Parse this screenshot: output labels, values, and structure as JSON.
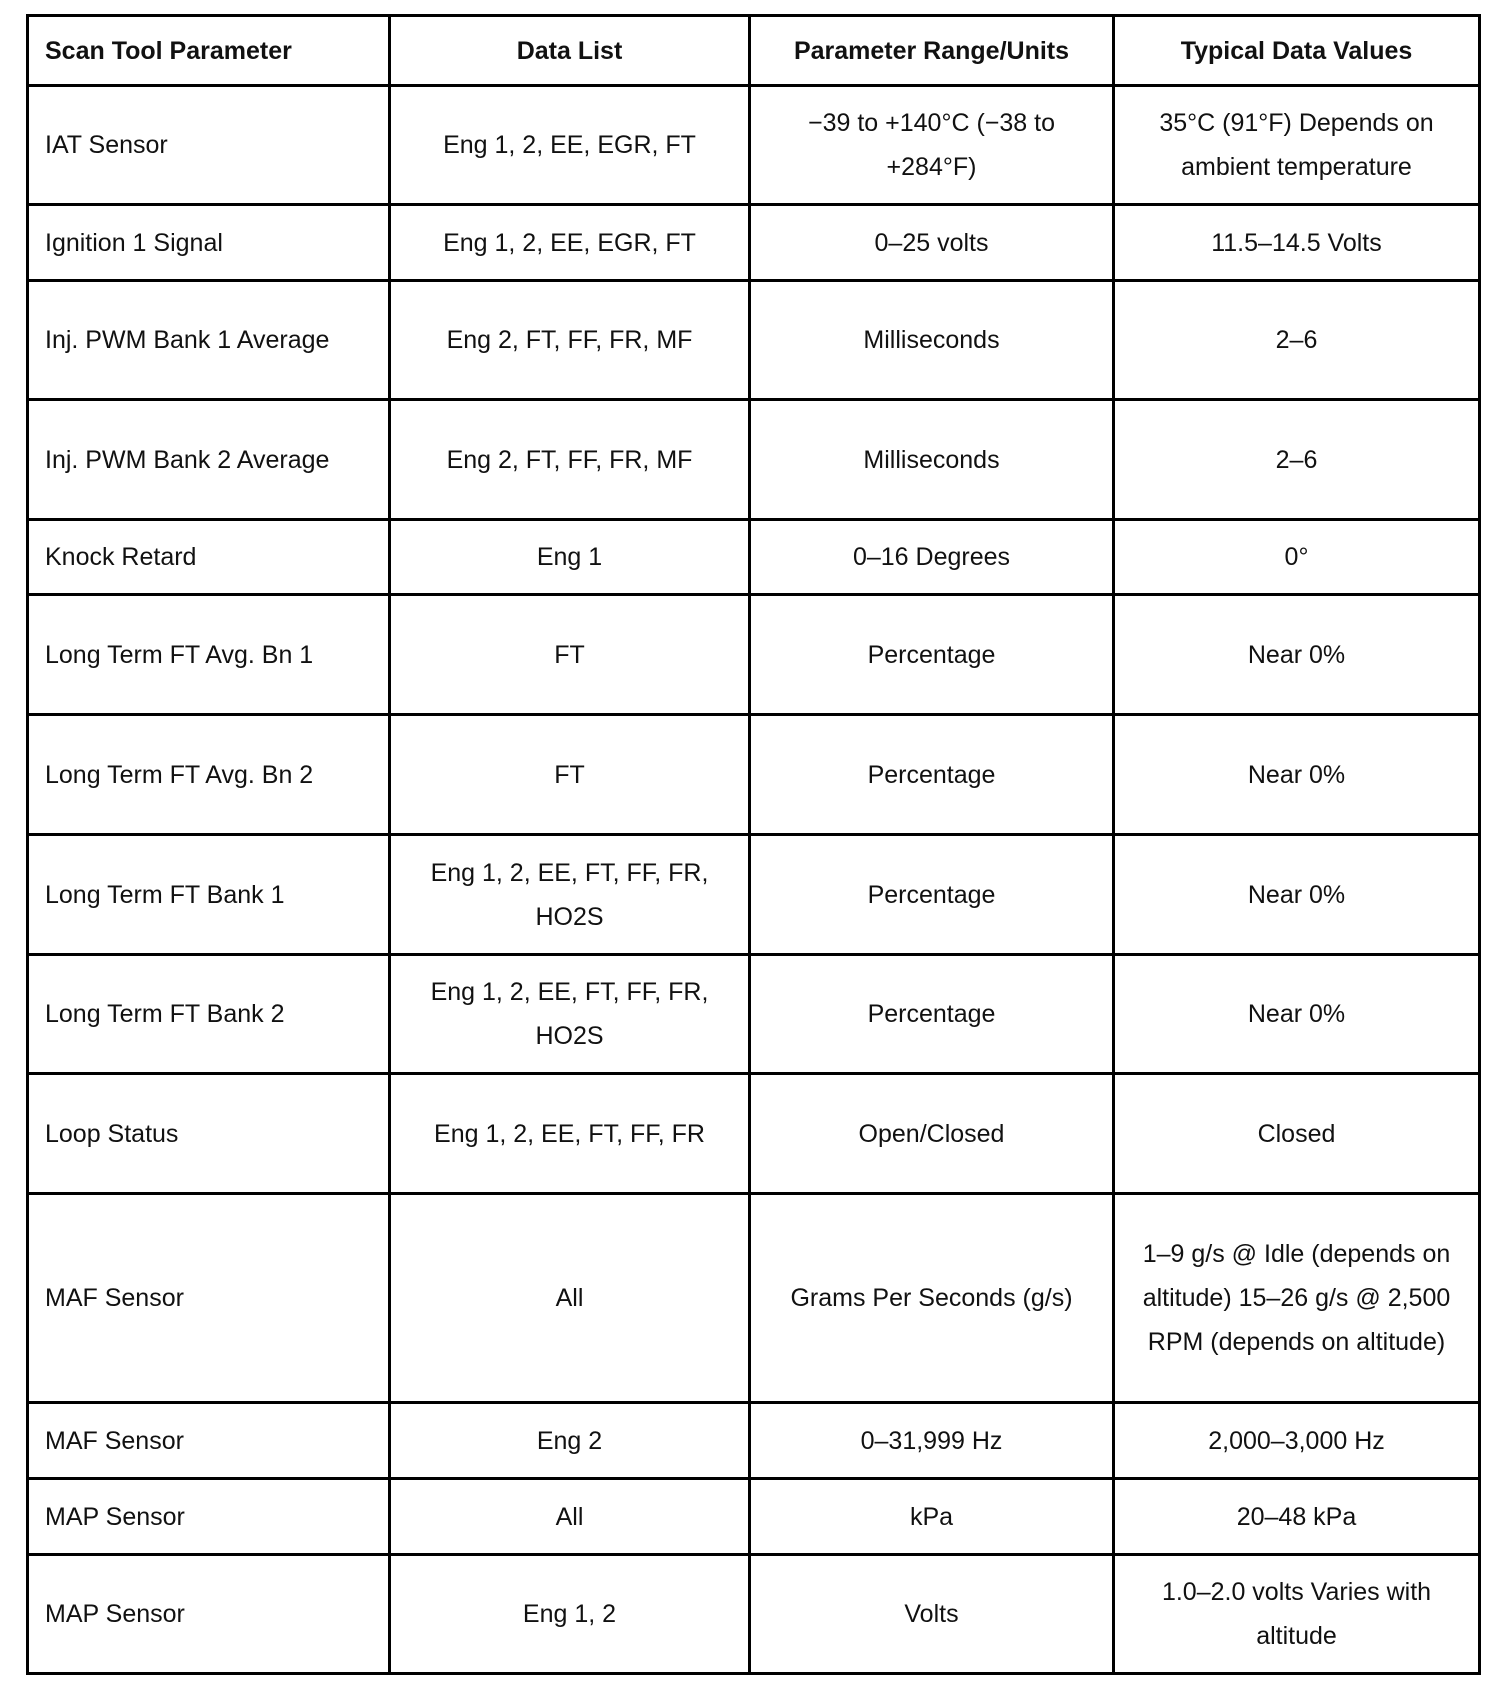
{
  "table": {
    "headers": [
      "Scan Tool Parameter",
      "Data List",
      "Parameter Range/Units",
      "Typical Data Values"
    ],
    "rows": [
      [
        "IAT Sensor",
        "Eng 1, 2, EE, EGR, FT",
        "−39 to +140°C (−38 to +284°F)",
        "35°C (91°F) Depends on ambient temperature"
      ],
      [
        "Ignition 1 Signal",
        "Eng 1, 2, EE, EGR, FT",
        "0–25 volts",
        "11.5–14.5 Volts"
      ],
      [
        "Inj. PWM Bank 1 Average",
        "Eng 2, FT, FF, FR, MF",
        "Milliseconds",
        "2–6"
      ],
      [
        "Inj. PWM Bank 2 Average",
        "Eng 2, FT, FF, FR, MF",
        "Milliseconds",
        "2–6"
      ],
      [
        "Knock Retard",
        "Eng 1",
        "0–16 Degrees",
        "0°"
      ],
      [
        "Long Term FT Avg. Bn 1",
        "FT",
        "Percentage",
        "Near 0%"
      ],
      [
        "Long Term FT Avg. Bn 2",
        "FT",
        "Percentage",
        "Near 0%"
      ],
      [
        "Long Term FT Bank 1",
        "Eng 1, 2, EE, FT, FF, FR, HO2S",
        "Percentage",
        "Near 0%"
      ],
      [
        "Long Term FT Bank 2",
        "Eng 1, 2, EE, FT, FF, FR, HO2S",
        "Percentage",
        "Near 0%"
      ],
      [
        "Loop Status",
        "Eng 1, 2, EE, FT, FF, FR",
        "Open/Closed",
        "Closed"
      ],
      [
        "MAF Sensor",
        "All",
        "Grams Per Seconds (g/s)",
        "1–9 g/s @ Idle (depends on altitude) 15–26 g/s @ 2,500 RPM (depends on altitude)"
      ],
      [
        "MAF Sensor",
        "Eng 2",
        "0–31,999 Hz",
        "2,000–3,000 Hz"
      ],
      [
        "MAP Sensor",
        "All",
        "kPa",
        "20–48 kPa"
      ],
      [
        "MAP Sensor",
        "Eng 1, 2",
        "Volts",
        "1.0–2.0 volts Varies with altitude"
      ]
    ]
  }
}
